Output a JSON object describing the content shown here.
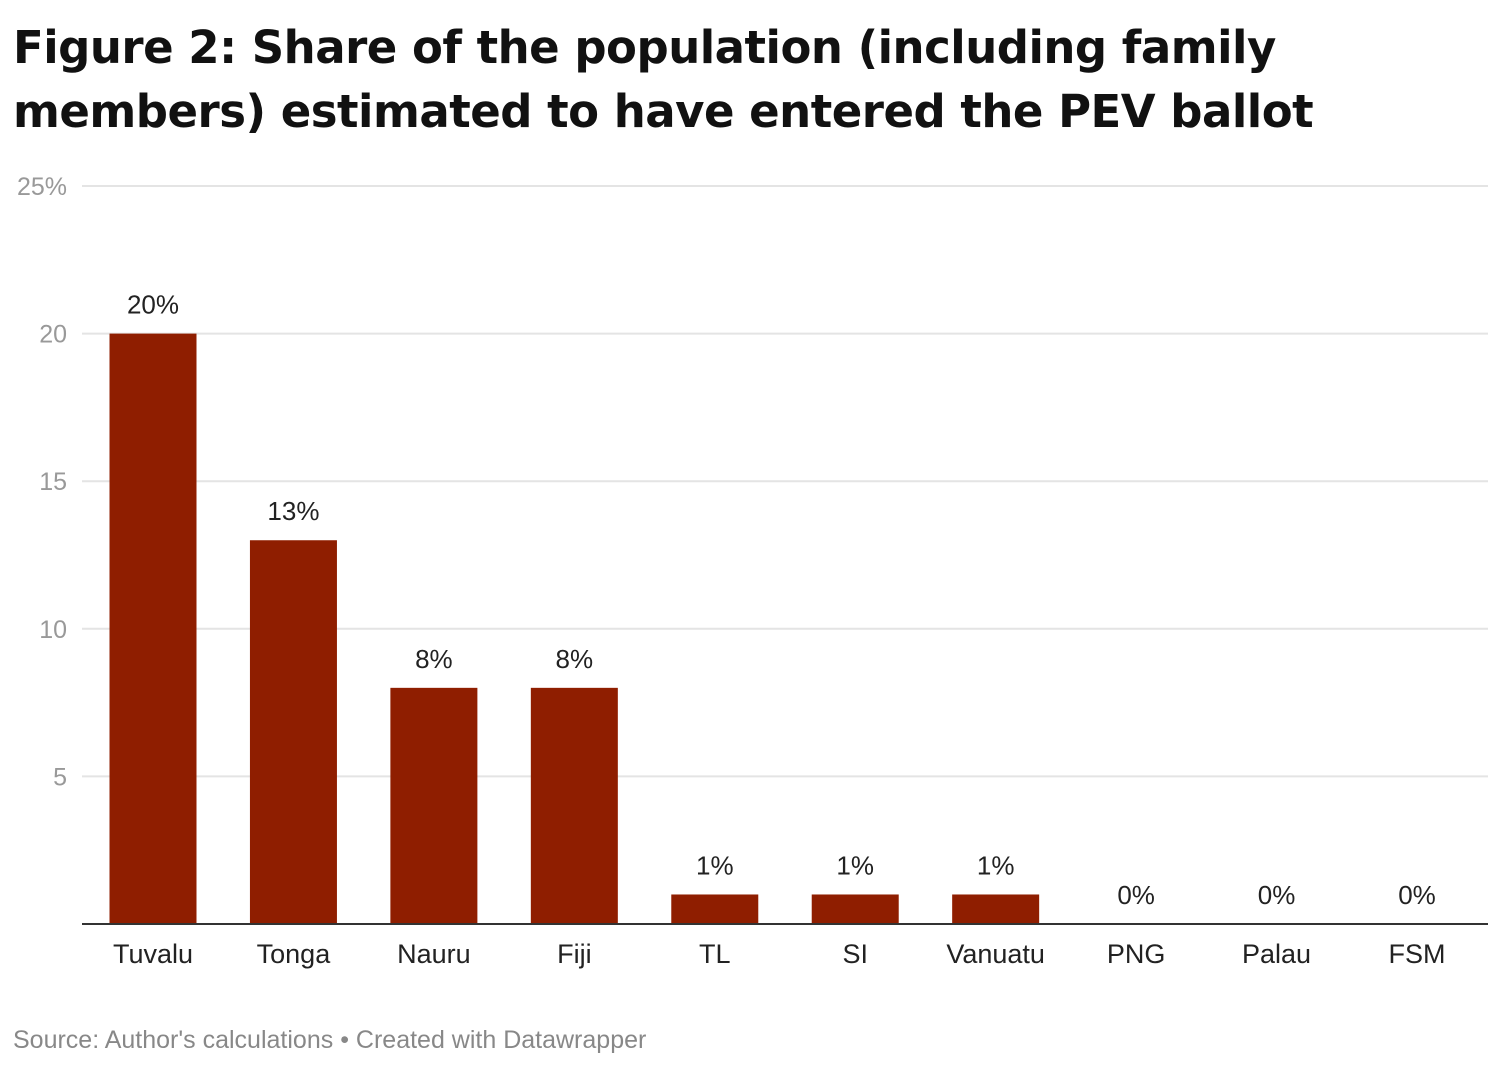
{
  "title": "Figure 2: Share of the population (including family members) estimated to have entered the PEV ballot",
  "footer": {
    "source": "Source: Author's calculations",
    "separator": "•",
    "credit": "Created with Datawrapper"
  },
  "colors": {
    "bar": "#8f1e00",
    "grid": "#e4e4e4",
    "axis": "#333333",
    "tick_text": "#999999"
  },
  "chart_data": {
    "type": "bar",
    "title": "Figure 2: Share of the population (including family members) estimated to have entered the PEV ballot",
    "xlabel": "",
    "ylabel": "",
    "ylim": [
      0,
      25
    ],
    "yticks": [
      5,
      10,
      15,
      20,
      25
    ],
    "ytick_labels": [
      "5",
      "10",
      "15",
      "20",
      "25%"
    ],
    "grid": true,
    "categories": [
      "Tuvalu",
      "Tonga",
      "Nauru",
      "Fiji",
      "TL",
      "SI",
      "Vanuatu",
      "PNG",
      "Palau",
      "FSM"
    ],
    "values": [
      20,
      13,
      8,
      8,
      1,
      1,
      1,
      0,
      0,
      0
    ],
    "data_labels": [
      "20%",
      "13%",
      "8%",
      "8%",
      "1%",
      "1%",
      "1%",
      "0%",
      "0%",
      "0%"
    ]
  }
}
